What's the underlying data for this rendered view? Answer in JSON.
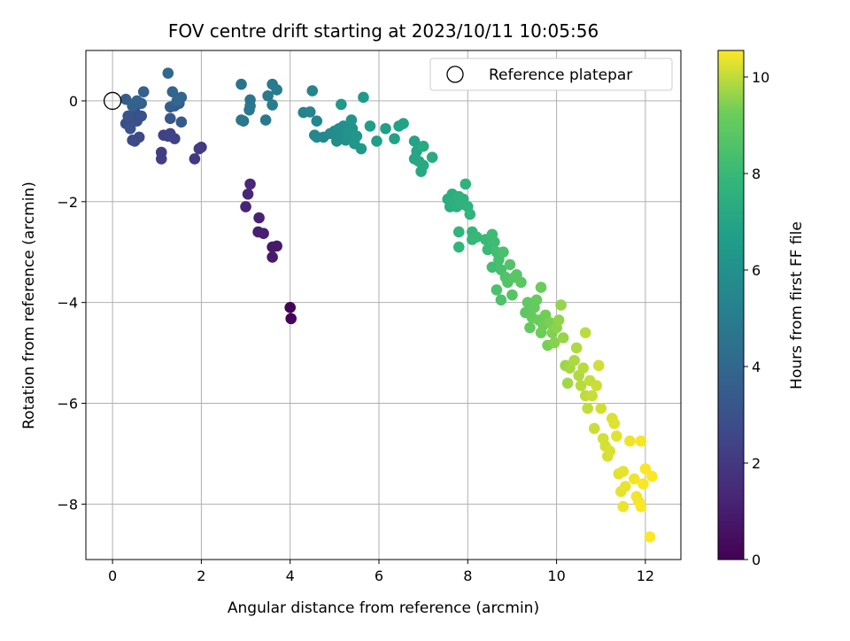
{
  "chart_data": {
    "type": "scatter",
    "title": "FOV centre drift starting at 2023/10/11 10:05:56",
    "xlabel": "Angular distance from reference (arcmin)",
    "ylabel": "Rotation from reference (arcmin)",
    "xlim": [
      -0.6,
      12.8
    ],
    "ylim": [
      -9.1,
      1.0
    ],
    "xticks": [
      0,
      2,
      4,
      6,
      8,
      10,
      12
    ],
    "yticks": [
      0,
      -2,
      -4,
      -6,
      -8
    ],
    "grid": true,
    "legend": {
      "placement": "top-right",
      "entries": [
        "Reference platepar"
      ]
    },
    "reference_point": {
      "x": 0,
      "y": 0,
      "label": "Reference platepar"
    },
    "colorbar": {
      "label": "Hours from first FF file",
      "min": 0,
      "max": 10.55,
      "ticks": [
        0,
        2,
        4,
        6,
        8,
        10
      ],
      "colormap": "viridis"
    },
    "points": [
      [
        4.0,
        -4.1,
        0.1
      ],
      [
        4.02,
        -4.32,
        0.15
      ],
      [
        3.6,
        -2.9,
        0.8
      ],
      [
        3.7,
        -2.88,
        0.85
      ],
      [
        3.6,
        -3.1,
        0.9
      ],
      [
        3.4,
        -2.63,
        1.0
      ],
      [
        3.28,
        -2.6,
        1.05
      ],
      [
        3.3,
        -2.32,
        1.1
      ],
      [
        3.0,
        -2.1,
        1.2
      ],
      [
        3.05,
        -1.85,
        1.3
      ],
      [
        3.1,
        -1.65,
        1.35
      ],
      [
        1.85,
        -1.15,
        2.0
      ],
      [
        2.0,
        -0.92,
        2.05
      ],
      [
        1.95,
        -0.95,
        2.1
      ],
      [
        1.1,
        -1.02,
        2.2
      ],
      [
        1.1,
        -1.15,
        2.25
      ],
      [
        1.15,
        -0.68,
        2.3
      ],
      [
        1.3,
        -0.65,
        2.35
      ],
      [
        1.25,
        -0.7,
        2.4
      ],
      [
        1.4,
        -0.75,
        2.45
      ],
      [
        0.5,
        -0.8,
        2.6
      ],
      [
        0.6,
        -0.72,
        2.65
      ],
      [
        0.45,
        -0.78,
        2.7
      ],
      [
        0.3,
        -0.45,
        2.8
      ],
      [
        0.4,
        -0.35,
        2.85
      ],
      [
        0.5,
        -0.2,
        2.9
      ],
      [
        0.55,
        -0.4,
        2.95
      ],
      [
        0.65,
        -0.3,
        3.0
      ],
      [
        0.4,
        -0.55,
        3.05
      ],
      [
        0.35,
        -0.3,
        3.1
      ],
      [
        1.3,
        -0.35,
        3.2
      ],
      [
        1.4,
        -0.1,
        3.25
      ],
      [
        1.5,
        -0.05,
        3.3
      ],
      [
        1.55,
        -0.42,
        3.35
      ],
      [
        1.3,
        -0.12,
        3.4
      ],
      [
        0.3,
        0.03,
        3.5
      ],
      [
        0.5,
        -0.05,
        3.55
      ],
      [
        0.65,
        -0.05,
        3.6
      ],
      [
        0.7,
        0.18,
        3.65
      ],
      [
        0.55,
        0.0,
        3.7
      ],
      [
        0.45,
        -0.1,
        3.75
      ],
      [
        1.35,
        0.18,
        3.8
      ],
      [
        1.55,
        0.07,
        3.85
      ],
      [
        1.45,
        0.0,
        3.9
      ],
      [
        1.25,
        0.55,
        3.95
      ],
      [
        2.9,
        0.33,
        4.5
      ],
      [
        2.95,
        -0.4,
        4.55
      ],
      [
        3.1,
        -0.1,
        4.6
      ],
      [
        3.1,
        0.02,
        4.65
      ],
      [
        3.08,
        -0.18,
        4.7
      ],
      [
        2.9,
        -0.38,
        4.72
      ],
      [
        3.45,
        -0.38,
        4.75
      ],
      [
        3.5,
        0.1,
        4.8
      ],
      [
        3.6,
        0.33,
        4.85
      ],
      [
        3.7,
        0.22,
        4.9
      ],
      [
        3.6,
        -0.08,
        4.95
      ],
      [
        4.3,
        -0.23,
        5.3
      ],
      [
        4.45,
        -0.22,
        5.35
      ],
      [
        4.5,
        0.2,
        5.4
      ],
      [
        4.6,
        -0.4,
        5.45
      ],
      [
        4.55,
        -0.68,
        5.5
      ],
      [
        4.6,
        -0.72,
        5.55
      ],
      [
        4.75,
        -0.72,
        5.6
      ],
      [
        4.9,
        -0.65,
        5.65
      ],
      [
        5.0,
        -0.6,
        5.7
      ],
      [
        5.05,
        -0.8,
        5.75
      ],
      [
        5.15,
        -0.72,
        5.8
      ],
      [
        5.1,
        -0.55,
        5.85
      ],
      [
        5.2,
        -0.5,
        5.9
      ],
      [
        5.25,
        -0.78,
        5.95
      ],
      [
        5.35,
        -0.68,
        6.0
      ],
      [
        5.4,
        -0.55,
        6.05
      ],
      [
        5.3,
        -0.62,
        6.1
      ],
      [
        5.38,
        -0.38,
        6.15
      ],
      [
        5.45,
        -0.85,
        6.2
      ],
      [
        5.5,
        -0.7,
        6.25
      ],
      [
        5.6,
        -0.95,
        6.3
      ],
      [
        5.15,
        -0.07,
        6.35
      ],
      [
        5.65,
        0.07,
        6.4
      ],
      [
        5.8,
        -0.5,
        6.6
      ],
      [
        5.95,
        -0.8,
        6.65
      ],
      [
        6.15,
        -0.55,
        6.7
      ],
      [
        6.35,
        -0.75,
        6.75
      ],
      [
        6.45,
        -0.5,
        6.8
      ],
      [
        6.55,
        -0.45,
        6.85
      ],
      [
        6.8,
        -0.8,
        6.9
      ],
      [
        6.85,
        -1.0,
        6.95
      ],
      [
        6.8,
        -1.15,
        7.0
      ],
      [
        6.9,
        -1.2,
        7.05
      ],
      [
        6.95,
        -1.4,
        7.1
      ],
      [
        7.0,
        -1.28,
        7.15
      ],
      [
        7.0,
        -0.9,
        7.2
      ],
      [
        7.2,
        -1.12,
        7.25
      ],
      [
        7.55,
        -1.95,
        7.35
      ],
      [
        7.6,
        -2.1,
        7.38
      ],
      [
        7.65,
        -1.85,
        7.4
      ],
      [
        7.7,
        -1.95,
        7.45
      ],
      [
        7.75,
        -2.1,
        7.5
      ],
      [
        7.8,
        -1.9,
        7.55
      ],
      [
        7.85,
        -2.05,
        7.6
      ],
      [
        7.9,
        -1.95,
        7.62
      ],
      [
        7.95,
        -1.65,
        7.65
      ],
      [
        8.0,
        -2.1,
        7.7
      ],
      [
        8.05,
        -2.25,
        7.75
      ],
      [
        7.8,
        -2.6,
        7.78
      ],
      [
        7.8,
        -2.9,
        7.8
      ],
      [
        8.1,
        -2.6,
        7.85
      ],
      [
        8.1,
        -2.75,
        7.9
      ],
      [
        8.2,
        -2.7,
        7.95
      ],
      [
        8.4,
        -2.75,
        8.0
      ],
      [
        8.45,
        -2.95,
        8.05
      ],
      [
        8.55,
        -2.65,
        8.1
      ],
      [
        8.6,
        -2.8,
        8.15
      ],
      [
        8.55,
        -3.3,
        8.2
      ],
      [
        8.65,
        -3.0,
        8.25
      ],
      [
        8.7,
        -3.15,
        8.3
      ],
      [
        8.75,
        -3.35,
        8.35
      ],
      [
        8.8,
        -3.0,
        8.4
      ],
      [
        8.65,
        -3.75,
        8.45
      ],
      [
        8.75,
        -3.95,
        8.5
      ],
      [
        8.85,
        -3.5,
        8.55
      ],
      [
        8.9,
        -3.6,
        8.6
      ],
      [
        8.95,
        -3.25,
        8.62
      ],
      [
        9.0,
        -3.85,
        8.65
      ],
      [
        9.05,
        -3.5,
        8.7
      ],
      [
        9.1,
        -3.45,
        8.75
      ],
      [
        9.2,
        -3.6,
        8.8
      ],
      [
        9.3,
        -4.2,
        8.85
      ],
      [
        9.35,
        -4.0,
        8.9
      ],
      [
        9.4,
        -4.5,
        8.95
      ],
      [
        9.45,
        -4.3,
        9.0
      ],
      [
        9.5,
        -4.1,
        9.02
      ],
      [
        9.55,
        -3.95,
        9.05
      ],
      [
        9.6,
        -4.35,
        9.1
      ],
      [
        9.65,
        -3.7,
        9.12
      ],
      [
        9.65,
        -4.6,
        9.15
      ],
      [
        9.7,
        -4.45,
        9.2
      ],
      [
        9.75,
        -4.25,
        9.25
      ],
      [
        9.8,
        -4.85,
        9.3
      ],
      [
        9.85,
        -4.4,
        9.35
      ],
      [
        9.9,
        -4.6,
        9.4
      ],
      [
        9.95,
        -4.8,
        9.45
      ],
      [
        10.0,
        -4.5,
        9.5
      ],
      [
        10.05,
        -4.35,
        9.55
      ],
      [
        10.1,
        -4.05,
        9.58
      ],
      [
        10.15,
        -4.7,
        9.6
      ],
      [
        10.2,
        -5.25,
        9.65
      ],
      [
        10.25,
        -5.6,
        9.7
      ],
      [
        10.3,
        -5.3,
        9.75
      ],
      [
        10.4,
        -5.15,
        9.8
      ],
      [
        10.45,
        -4.9,
        9.82
      ],
      [
        10.5,
        -5.45,
        9.85
      ],
      [
        10.55,
        -5.65,
        9.9
      ],
      [
        10.6,
        -5.3,
        9.92
      ],
      [
        10.65,
        -4.6,
        9.95
      ],
      [
        10.65,
        -5.85,
        9.98
      ],
      [
        10.7,
        -6.1,
        10.0
      ],
      [
        10.75,
        -5.55,
        10.02
      ],
      [
        10.8,
        -5.85,
        10.05
      ],
      [
        10.85,
        -6.5,
        10.08
      ],
      [
        10.9,
        -5.65,
        10.1
      ],
      [
        10.95,
        -5.25,
        10.12
      ],
      [
        11.0,
        -6.1,
        10.14
      ],
      [
        11.05,
        -6.7,
        10.16
      ],
      [
        11.1,
        -6.85,
        10.18
      ],
      [
        11.15,
        -7.05,
        10.2
      ],
      [
        11.2,
        -6.95,
        10.22
      ],
      [
        11.25,
        -6.3,
        10.24
      ],
      [
        11.3,
        -6.4,
        10.26
      ],
      [
        11.35,
        -6.65,
        10.28
      ],
      [
        11.4,
        -7.4,
        10.3
      ],
      [
        11.45,
        -7.75,
        10.32
      ],
      [
        11.5,
        -7.35,
        10.34
      ],
      [
        11.55,
        -7.65,
        10.36
      ],
      [
        11.5,
        -8.05,
        10.38
      ],
      [
        11.65,
        -6.75,
        10.4
      ],
      [
        11.75,
        -7.5,
        10.42
      ],
      [
        11.8,
        -7.85,
        10.44
      ],
      [
        11.85,
        -7.95,
        10.46
      ],
      [
        11.9,
        -6.75,
        10.48
      ],
      [
        11.95,
        -7.6,
        10.5
      ],
      [
        12.0,
        -7.3,
        10.52
      ],
      [
        11.9,
        -8.05,
        10.53
      ],
      [
        12.15,
        -7.45,
        10.54
      ],
      [
        12.1,
        -8.65,
        10.55
      ]
    ]
  }
}
